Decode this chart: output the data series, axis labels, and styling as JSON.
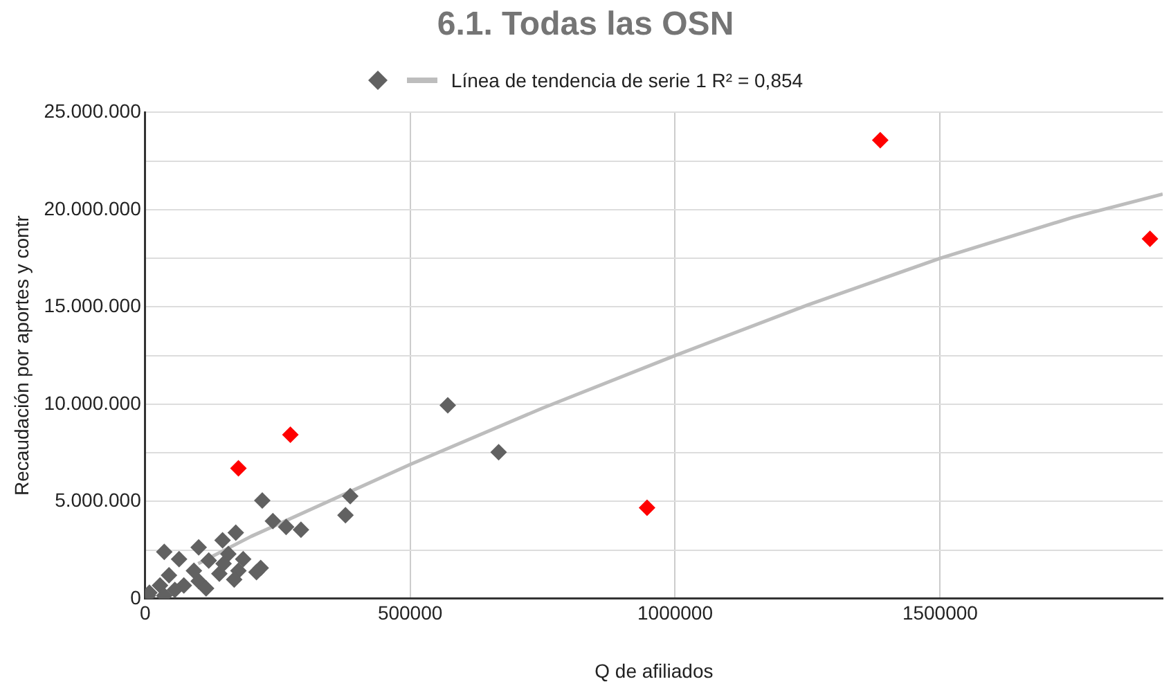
{
  "chart_data": {
    "type": "scatter",
    "title": "6.1. Todas las OSN",
    "xlabel": "Q de afiliados",
    "ylabel": "Recaudación por aportes y contr",
    "xlim": [
      0,
      1920000
    ],
    "xticks": [
      0,
      500000,
      1000000,
      1500000
    ],
    "ylim": [
      0,
      25000000
    ],
    "yticks": [
      {
        "value": 0,
        "label": "0"
      },
      {
        "value": 2500000,
        "label": null
      },
      {
        "value": 5000000,
        "label": "5.000.000"
      },
      {
        "value": 7500000,
        "label": null
      },
      {
        "value": 10000000,
        "label": "10.000.000"
      },
      {
        "value": 12500000,
        "label": null
      },
      {
        "value": 15000000,
        "label": "15.000.000"
      },
      {
        "value": 17500000,
        "label": null
      },
      {
        "value": 20000000,
        "label": "20.000.000"
      },
      {
        "value": 22500000,
        "label": null
      },
      {
        "value": 25000000,
        "label": "25.000.000"
      }
    ],
    "grid": true,
    "legend": "top",
    "marker": "diamond",
    "series": [
      {
        "type": "scatter",
        "color": "#616161",
        "x": [
          176000,
          274000,
          1387000,
          1896000,
          947000,
          571000,
          667000,
          387000,
          378000,
          221000,
          241000,
          266000,
          294000,
          146000,
          101000,
          36000,
          64000,
          157000,
          218000,
          185000,
          120000,
          45000,
          28000,
          8000,
          73000,
          140000,
          176000,
          101000,
          56000,
          5000,
          36000,
          92000,
          148000,
          115000,
          171000,
          210000,
          168000
        ],
        "values": [
          6700000,
          8430000,
          23570000,
          18500000,
          4670000,
          9940000,
          7530000,
          5270000,
          4290000,
          5050000,
          3990000,
          3690000,
          3540000,
          3000000,
          2640000,
          2400000,
          2030000,
          2300000,
          1580000,
          2030000,
          1960000,
          1200000,
          680000,
          300000,
          680000,
          1280000,
          1430000,
          900000,
          450000,
          150000,
          150000,
          1430000,
          1800000,
          530000,
          3390000,
          1360000,
          980000
        ],
        "colors": [
          "#ff0000",
          "#ff0000",
          "#ff0000",
          "#ff0000",
          "#ff0000",
          "#616161",
          "#616161",
          "#616161",
          "#616161",
          "#616161",
          "#616161",
          "#616161",
          "#616161",
          "#616161",
          "#616161",
          "#616161",
          "#616161",
          "#616161",
          "#616161",
          "#616161",
          "#616161",
          "#616161",
          "#616161",
          "#616161",
          "#616161",
          "#616161",
          "#616161",
          "#616161",
          "#616161",
          "#616161",
          "#616161",
          "#616161",
          "#616161",
          "#616161",
          "#616161",
          "#616161",
          "#616161"
        ]
      },
      {
        "type": "line",
        "name": "Línea de tendencia de serie 1 R² = 0,854",
        "color": "#bdbdbd",
        "marker": "none",
        "x": [
          100000,
          200000,
          500000,
          750000,
          1000000,
          1250000,
          1500000,
          1750000,
          1920000
        ],
        "values": [
          1800000,
          3200000,
          6900000,
          9800000,
          12500000,
          15100000,
          17500000,
          19600000,
          20800000
        ]
      }
    ]
  }
}
